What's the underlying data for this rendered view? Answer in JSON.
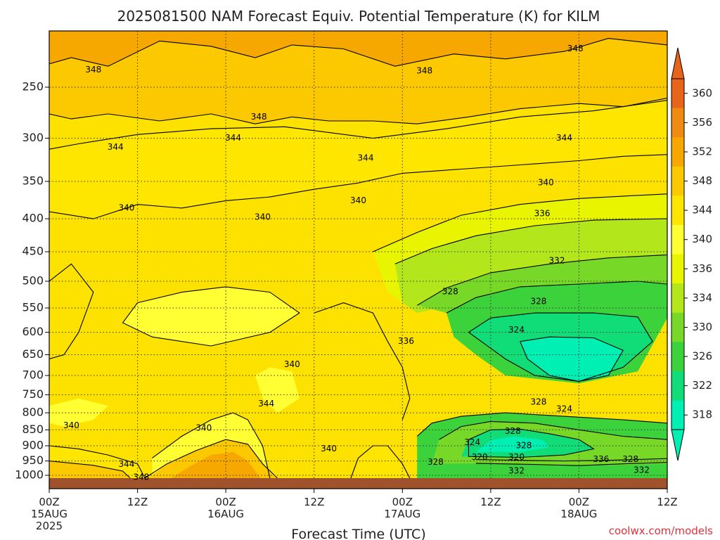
{
  "chart_data": {
    "type": "heatmap",
    "title": "2025081500 NAM Forecast Equiv. Potential Temperature (K) for KILM",
    "xlabel": "Forecast Time (UTC)",
    "ylabel": "",
    "credit": "coolwx.com/models",
    "x_ticks": [
      {
        "hours": 0,
        "label": "00Z",
        "sub": "15AUG",
        "sub2": "2025"
      },
      {
        "hours": 12,
        "label": "12Z",
        "sub": "",
        "sub2": ""
      },
      {
        "hours": 24,
        "label": "00Z",
        "sub": "16AUG",
        "sub2": ""
      },
      {
        "hours": 36,
        "label": "12Z",
        "sub": "",
        "sub2": ""
      },
      {
        "hours": 48,
        "label": "00Z",
        "sub": "17AUG",
        "sub2": ""
      },
      {
        "hours": 60,
        "label": "12Z",
        "sub": "",
        "sub2": ""
      },
      {
        "hours": 72,
        "label": "00Z",
        "sub": "18AUG",
        "sub2": ""
      },
      {
        "hours": 84,
        "label": "12Z",
        "sub": "",
        "sub2": ""
      }
    ],
    "xlim": [
      0,
      84
    ],
    "y_ticks": [
      250,
      300,
      350,
      400,
      450,
      500,
      550,
      600,
      650,
      700,
      750,
      800,
      850,
      900,
      950,
      1000
    ],
    "ylim": [
      1020,
      200
    ],
    "y_scale": "log",
    "grid": "dotted",
    "colorbar": {
      "labels": [
        360,
        356,
        352,
        348,
        344,
        340,
        336,
        334,
        330,
        326,
        322,
        318
      ],
      "colors": [
        "#e8641a",
        "#f08a10",
        "#f6a800",
        "#fcc800",
        "#ffe600",
        "#ffff33",
        "#e8f400",
        "#b4e61c",
        "#78d828",
        "#3cd23c",
        "#10dc78",
        "#00f0b4"
      ]
    },
    "terrain_color": "#a0522d",
    "contour_labels": [
      {
        "hours": 6.0,
        "pres": 235,
        "text": "348"
      },
      {
        "hours": 28.5,
        "pres": 278,
        "text": "348"
      },
      {
        "hours": 51.0,
        "pres": 236,
        "text": "348"
      },
      {
        "hours": 71.5,
        "pres": 218,
        "text": "348"
      },
      {
        "hours": 9.0,
        "pres": 310,
        "text": "344"
      },
      {
        "hours": 25.0,
        "pres": 300,
        "text": "344"
      },
      {
        "hours": 43.0,
        "pres": 322,
        "text": "344"
      },
      {
        "hours": 70.0,
        "pres": 300,
        "text": "344"
      },
      {
        "hours": 10.5,
        "pres": 385,
        "text": "340"
      },
      {
        "hours": 29.0,
        "pres": 398,
        "text": "340"
      },
      {
        "hours": 42.0,
        "pres": 375,
        "text": "340"
      },
      {
        "hours": 67.5,
        "pres": 352,
        "text": "340"
      },
      {
        "hours": 67.0,
        "pres": 393,
        "text": "336"
      },
      {
        "hours": 69.0,
        "pres": 465,
        "text": "332"
      },
      {
        "hours": 54.5,
        "pres": 519,
        "text": "328"
      },
      {
        "hours": 66.5,
        "pres": 538,
        "text": "328"
      },
      {
        "hours": 63.5,
        "pres": 595,
        "text": "324"
      },
      {
        "hours": 48.5,
        "pres": 620,
        "text": "336"
      },
      {
        "hours": 33.0,
        "pres": 673,
        "text": "340"
      },
      {
        "hours": 29.5,
        "pres": 775,
        "text": "344"
      },
      {
        "hours": 21.0,
        "pres": 845,
        "text": "340"
      },
      {
        "hours": 3.0,
        "pres": 838,
        "text": "340"
      },
      {
        "hours": 38.0,
        "pres": 910,
        "text": "340"
      },
      {
        "hours": 10.5,
        "pres": 962,
        "text": "344"
      },
      {
        "hours": 12.5,
        "pres": 1007,
        "text": "348"
      },
      {
        "hours": 66.5,
        "pres": 770,
        "text": "328"
      },
      {
        "hours": 70.0,
        "pres": 790,
        "text": "324"
      },
      {
        "hours": 63.0,
        "pres": 855,
        "text": "328"
      },
      {
        "hours": 57.5,
        "pres": 890,
        "text": "324"
      },
      {
        "hours": 64.5,
        "pres": 900,
        "text": "328"
      },
      {
        "hours": 58.5,
        "pres": 938,
        "text": "320"
      },
      {
        "hours": 63.5,
        "pres": 938,
        "text": "320"
      },
      {
        "hours": 52.5,
        "pres": 955,
        "text": "328"
      },
      {
        "hours": 63.5,
        "pres": 985,
        "text": "332"
      },
      {
        "hours": 75.0,
        "pres": 945,
        "text": "336"
      },
      {
        "hours": 79.0,
        "pres": 945,
        "text": "328"
      },
      {
        "hours": 80.5,
        "pres": 982,
        "text": "332"
      }
    ]
  }
}
